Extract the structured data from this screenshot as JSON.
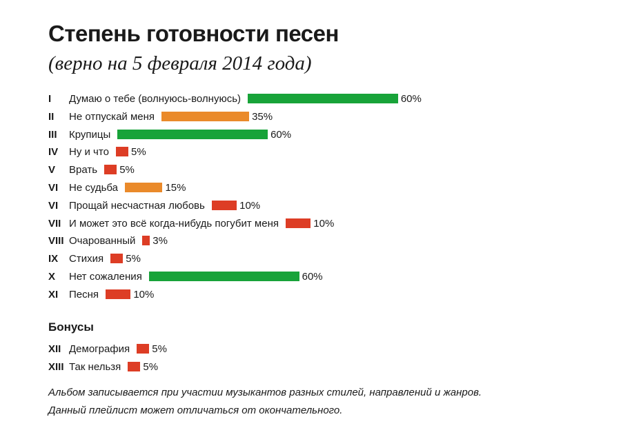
{
  "title": "Степень готовности песен",
  "subtitle": "(верно на 5 февраля 2014 года)",
  "bonus_heading": "Бонусы",
  "notes": [
    "Альбом записывается при участии музыкантов разных стилей, направлений и жанров.",
    "Данный плейлист может отличаться от окончательного."
  ],
  "colors": {
    "green": "#18a339",
    "orange": "#ea8a2a",
    "red": "#dd3d25"
  },
  "chart_data": {
    "type": "bar",
    "orientation": "horizontal",
    "xlim": [
      0,
      100
    ],
    "groups": [
      {
        "name": "",
        "items": [
          {
            "num": "I",
            "label": "Думаю о тебе (волнуюсь-волнуюсь)",
            "value": 60,
            "display": "60%",
            "color": "green"
          },
          {
            "num": "II",
            "label": "Не отпускай меня",
            "value": 35,
            "display": "35%",
            "color": "orange"
          },
          {
            "num": "III",
            "label": "Крупицы",
            "value": 60,
            "display": "60%",
            "color": "green"
          },
          {
            "num": "IV",
            "label": "Ну и что",
            "value": 5,
            "display": "5%",
            "color": "red"
          },
          {
            "num": "V",
            "label": "Врать",
            "value": 5,
            "display": "5%",
            "color": "red"
          },
          {
            "num": "VI",
            "label": "Не судьба",
            "value": 15,
            "display": "15%",
            "color": "orange"
          },
          {
            "num": "VI",
            "label": "Прощай несчастная любовь",
            "value": 10,
            "display": "10%",
            "color": "red"
          },
          {
            "num": "VII",
            "label": "И может это всё когда-нибудь погубит меня",
            "value": 10,
            "display": "10%",
            "color": "red"
          },
          {
            "num": "VIII",
            "label": "Очарованный",
            "value": 3,
            "display": "3%",
            "color": "red"
          },
          {
            "num": "IX",
            "label": "Стихия",
            "value": 5,
            "display": "5%",
            "color": "red"
          },
          {
            "num": "X",
            "label": "Нет сожаления",
            "value": 60,
            "display": "60%",
            "color": "green"
          },
          {
            "num": "XI",
            "label": "Песня",
            "value": 10,
            "display": "10%",
            "color": "red"
          }
        ]
      },
      {
        "name": "Бонусы",
        "items": [
          {
            "num": "XII",
            "label": "Демография",
            "value": 5,
            "display": "5%",
            "color": "red"
          },
          {
            "num": "XIII",
            "label": "Так нельзя",
            "value": 5,
            "display": "5%",
            "color": "red"
          }
        ]
      }
    ]
  }
}
